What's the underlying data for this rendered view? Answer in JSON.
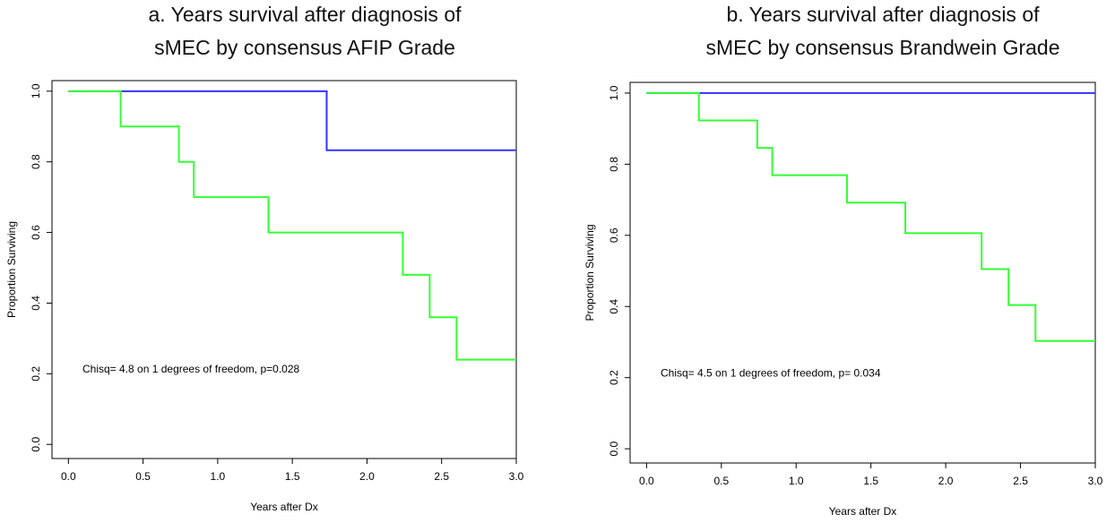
{
  "chart_data": [
    {
      "type": "step",
      "title": [
        "a.  Years survival after diagnosis of",
        "sMEC by consensus AFIP Grade"
      ],
      "xlabel": "Years after Dx",
      "ylabel": "Proportion Surviving",
      "annotation": "Chisq= 4.8  on 1 degrees of freedom, p=0.028",
      "xlim": [
        -0.11,
        3.0
      ],
      "ylim": [
        -0.04,
        1.03
      ],
      "xticks": [
        {
          "value": 0,
          "label": "0.0"
        },
        0.5,
        {
          "value": 1,
          "label": "1.0"
        },
        1.5,
        {
          "value": 2,
          "label": "2.0"
        },
        2.5,
        {
          "value": 3,
          "label": "3.0"
        }
      ],
      "yticks": [
        {
          "value": 0,
          "label": "0.0"
        },
        0.2,
        0.4,
        0.6,
        0.8,
        {
          "value": 1,
          "label": "1.0"
        }
      ],
      "series": [
        {
          "color": "#3333ff",
          "x": [
            0,
            1.73,
            3.0
          ],
          "values": [
            1,
            0.833,
            0.833
          ]
        },
        {
          "color": "#33ff33",
          "x": [
            0,
            0.35,
            0.74,
            0.84,
            1.34,
            2.24,
            2.42,
            2.6,
            3.0
          ],
          "values": [
            1,
            0.9,
            0.8,
            0.7,
            0.6,
            0.48,
            0.36,
            0.24,
            0.24
          ]
        }
      ]
    },
    {
      "type": "step",
      "title": [
        "b.  Years survival after diagnosis of",
        "sMEC by consensus Brandwein Grade"
      ],
      "xlabel": "Years after Dx",
      "ylabel": "Proportion Surviving",
      "annotation": "Chisq= 4.5 on 1 degrees of freedom, p= 0.034",
      "xlim": [
        -0.11,
        3.0
      ],
      "ylim": [
        -0.04,
        1.03
      ],
      "xticks": [
        {
          "value": 0,
          "label": "0.0"
        },
        0.5,
        {
          "value": 1,
          "label": "1.0"
        },
        1.5,
        {
          "value": 2,
          "label": "2.0"
        },
        2.5,
        {
          "value": 3,
          "label": "3.0"
        }
      ],
      "yticks": [
        {
          "value": 0,
          "label": "0.0"
        },
        0.2,
        0.4,
        0.6,
        0.8,
        {
          "value": 1,
          "label": "1.0"
        }
      ],
      "series": [
        {
          "color": "#3333ff",
          "x": [
            0,
            3.0
          ],
          "values": [
            1,
            1
          ]
        },
        {
          "color": "#33ff33",
          "x": [
            0,
            0.35,
            0.74,
            0.84,
            1.34,
            1.73,
            2.24,
            2.42,
            2.6,
            3.0
          ],
          "values": [
            1,
            0.923,
            0.846,
            0.769,
            0.692,
            0.606,
            0.505,
            0.404,
            0.303,
            0.303
          ]
        }
      ]
    }
  ]
}
